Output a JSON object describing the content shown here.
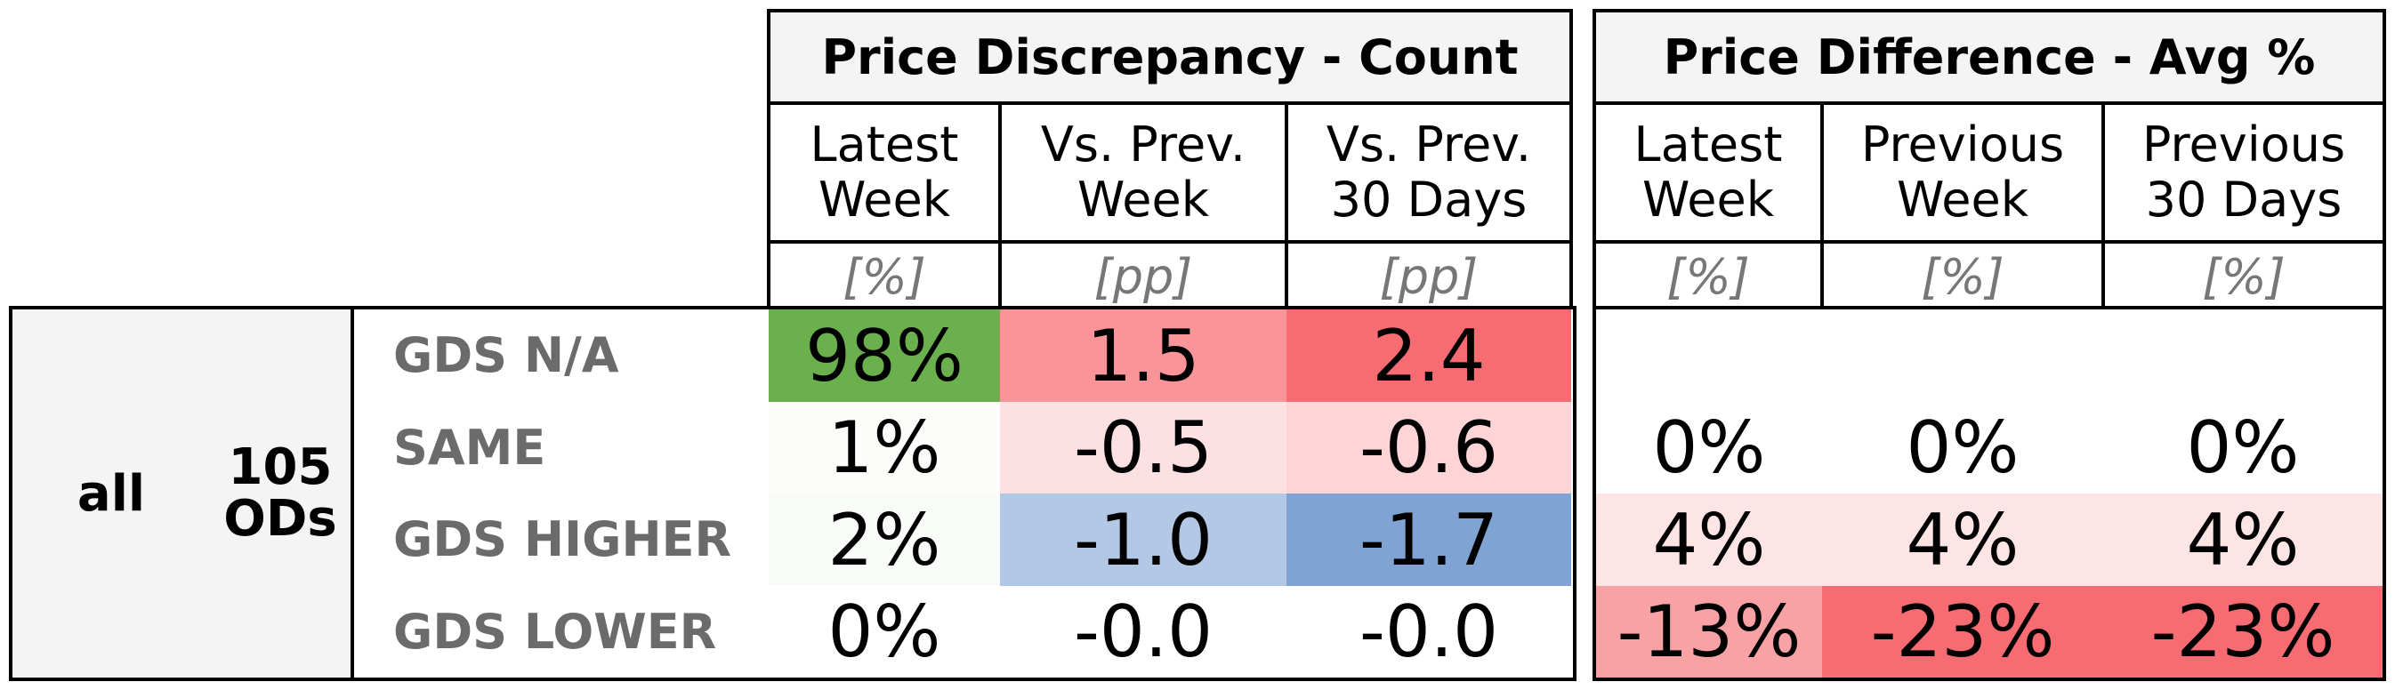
{
  "chart_data": {
    "type": "table",
    "sections": [
      {
        "title": "Price Discrepancy - Count",
        "columns": [
          {
            "label": "Latest\nWeek",
            "unit": "[%]"
          },
          {
            "label": "Vs. Prev.\nWeek",
            "unit": "[pp]"
          },
          {
            "label": "Vs. Prev.\n30 Days",
            "unit": "[pp]"
          }
        ]
      },
      {
        "title": "Price Difference - Avg %",
        "columns": [
          {
            "label": "Latest\nWeek",
            "unit": "[%]"
          },
          {
            "label": "Previous\nWeek",
            "unit": "[%]"
          },
          {
            "label": "Previous\n30 Days",
            "unit": "[%]"
          }
        ]
      }
    ],
    "group": {
      "name": "all",
      "count": "105\nODs"
    },
    "rows": [
      {
        "label": "GDS N/A",
        "count": [
          "98%",
          "1.5",
          "2.4"
        ],
        "count_colors": [
          "#6ab04c",
          "#f99599",
          "#f76b72"
        ],
        "diff": [
          "",
          "",
          ""
        ],
        "diff_colors": [
          "#ffffff",
          "#ffffff",
          "#ffffff"
        ]
      },
      {
        "label": "SAME",
        "count": [
          "1%",
          "-0.5",
          "-0.6"
        ],
        "count_colors": [
          "#fcfdfb",
          "#fde0e1",
          "#fdd5d6"
        ],
        "diff": [
          "0%",
          "0%",
          "0%"
        ],
        "diff_colors": [
          "#ffffff",
          "#ffffff",
          "#ffffff"
        ]
      },
      {
        "label": "GDS HIGHER",
        "count": [
          "2%",
          "-1.0",
          "-1.7"
        ],
        "count_colors": [
          "#f9fbf8",
          "#b3c8e5",
          "#7fa3d3"
        ],
        "diff": [
          "4%",
          "4%",
          "4%"
        ],
        "diff_colors": [
          "#fde4e5",
          "#fde4e5",
          "#fde4e5"
        ]
      },
      {
        "label": "GDS LOWER",
        "count": [
          "0%",
          "-0.0",
          "-0.0"
        ],
        "count_colors": [
          "#ffffff",
          "#ffffff",
          "#ffffff"
        ],
        "diff": [
          "-13%",
          "-23%",
          "-23%"
        ],
        "diff_colors": [
          "#f9a2a5",
          "#f76b72",
          "#f76b72"
        ]
      }
    ]
  }
}
